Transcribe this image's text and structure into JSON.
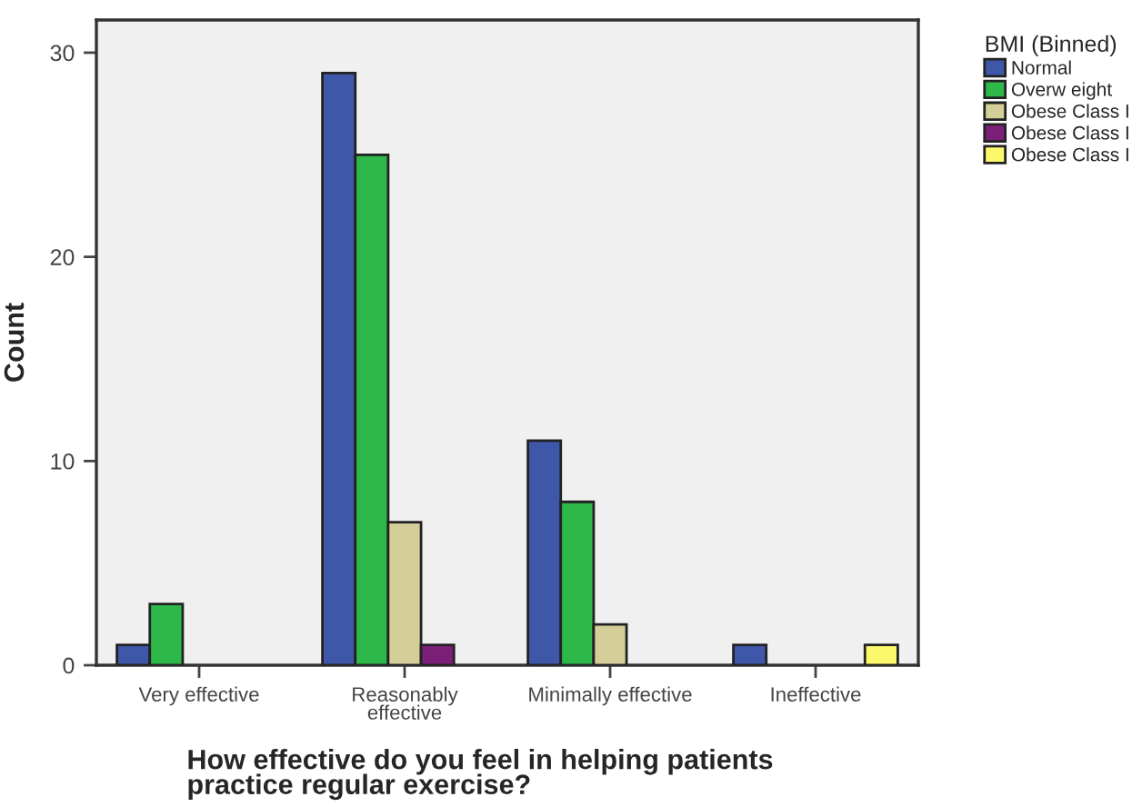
{
  "chart_data": {
    "type": "bar",
    "xlabel": "How effective do you feel in helping patients\npractice regular exercise?",
    "ylabel": "Count",
    "legend_title": "BMI (Binned)",
    "categories": [
      "Very effective",
      "Reasonably\neffective",
      "Minimally effective",
      "Ineffective"
    ],
    "series": [
      {
        "name": "Normal",
        "color": "#3e57a8",
        "values": [
          1,
          29,
          11,
          1
        ]
      },
      {
        "name": "Overw eight",
        "color": "#2fb84a",
        "values": [
          3,
          25,
          8,
          null
        ]
      },
      {
        "name": "Obese Class I",
        "color": "#d4cf99",
        "values": [
          null,
          7,
          2,
          null
        ]
      },
      {
        "name": "Obese Class I",
        "color": "#7b1f79",
        "values": [
          null,
          1,
          null,
          null
        ]
      },
      {
        "name": "Obese Class I",
        "color": "#fbf96b",
        "values": [
          null,
          null,
          null,
          1
        ]
      }
    ],
    "ylim": [
      0,
      31.6
    ],
    "yticks": [
      0,
      10,
      20,
      30
    ],
    "grid": false,
    "legend": "top right"
  }
}
